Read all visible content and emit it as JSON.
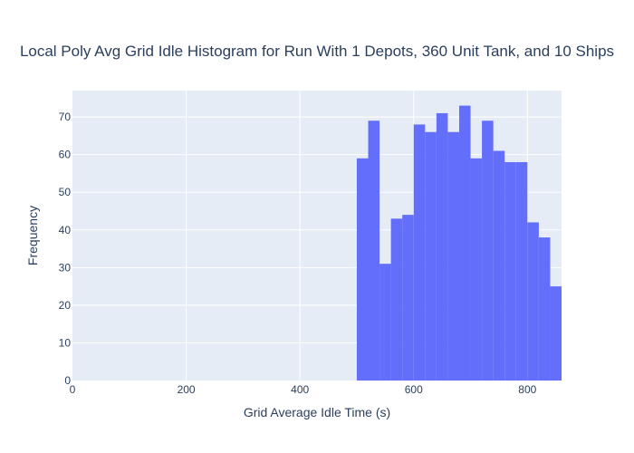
{
  "chart_data": {
    "type": "bar",
    "title": "Local Poly Avg Grid Idle Histogram for Run With 1 Depots, 360 Unit Tank, and 10 Ships",
    "xlabel": "Grid Average Idle Time (s)",
    "ylabel": "Frequency",
    "xlim": [
      0,
      860
    ],
    "ylim": [
      0,
      77
    ],
    "x_ticks": [
      0,
      200,
      400,
      600,
      800
    ],
    "y_ticks": [
      0,
      10,
      20,
      30,
      40,
      50,
      60,
      70
    ],
    "grid": true,
    "bin_width": 20,
    "bin_starts": [
      500,
      520,
      540,
      560,
      580,
      600,
      620,
      640,
      660,
      680,
      700,
      720,
      740,
      760,
      780,
      800,
      820,
      840
    ],
    "values": [
      59,
      69,
      31,
      43,
      44,
      68,
      66,
      71,
      66,
      73,
      59,
      69,
      61,
      58,
      58,
      42,
      38,
      25
    ],
    "colors": {
      "bar": "#636efa",
      "plot_bg": "#e5ecf6",
      "grid": "#ffffff",
      "text": "#2a3f5f"
    }
  }
}
